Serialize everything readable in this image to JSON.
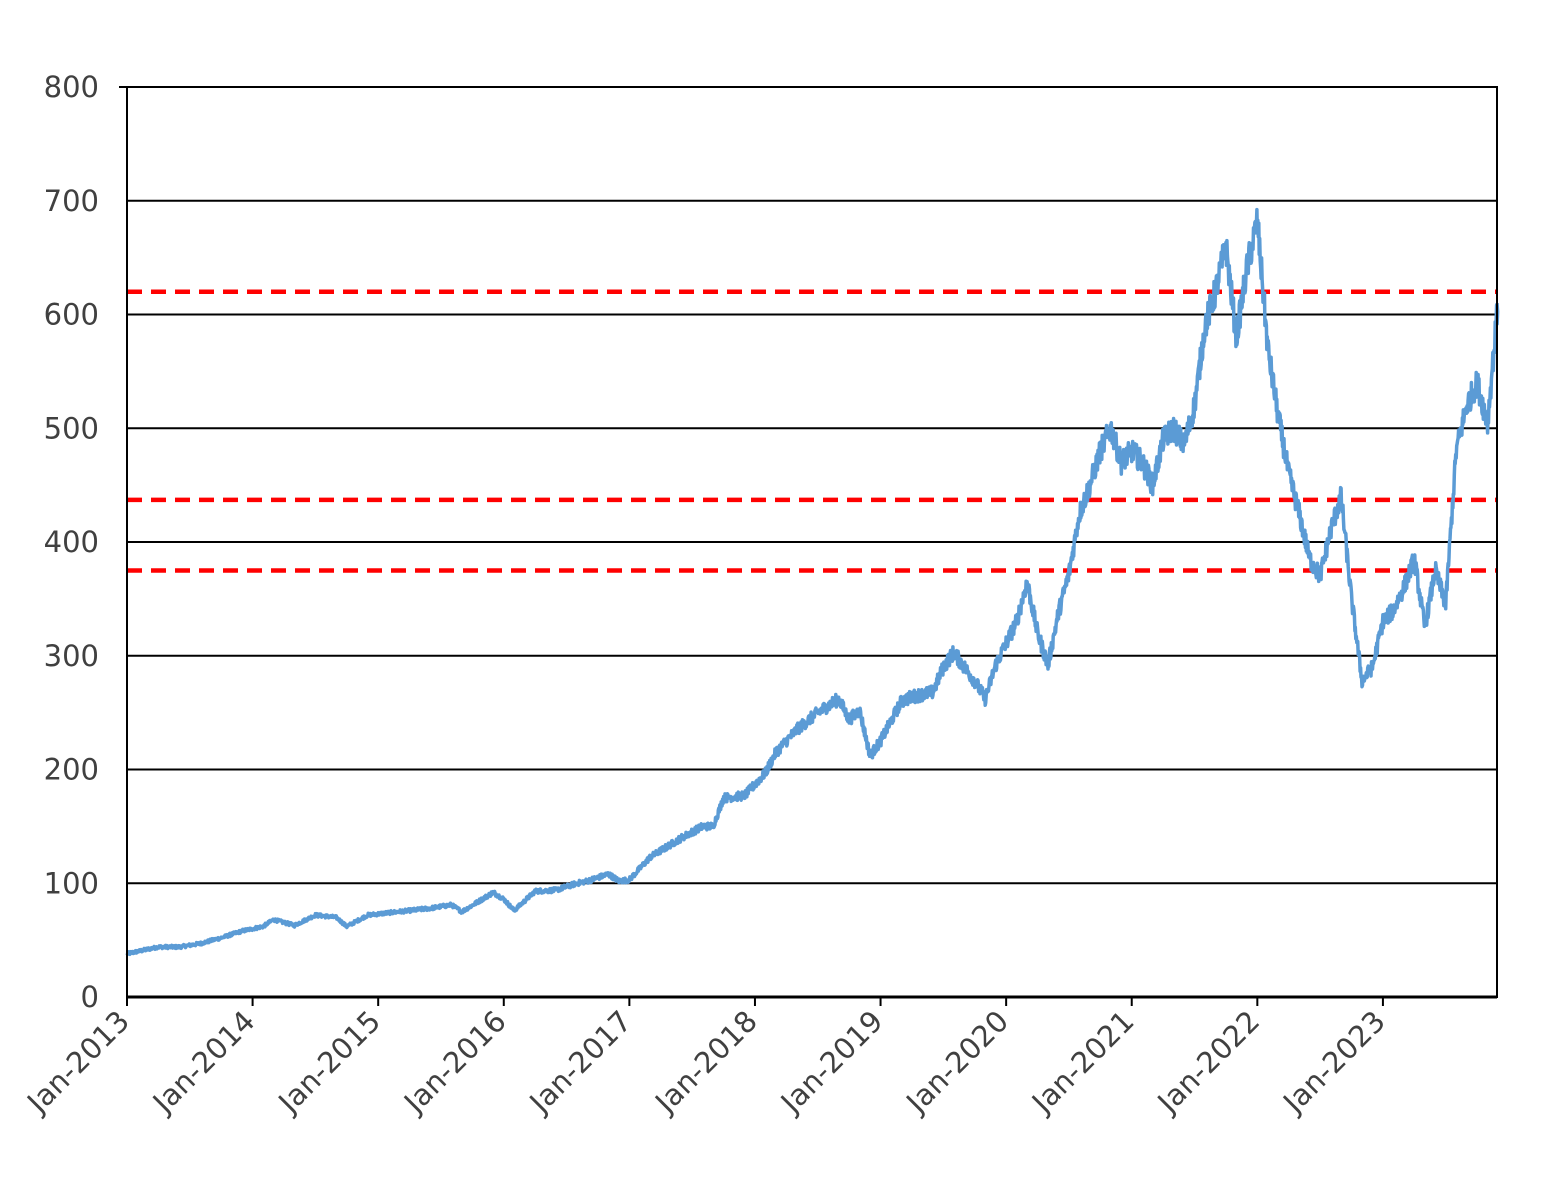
{
  "chart_data": {
    "type": "line",
    "title": "",
    "xlabel": "",
    "ylabel": "",
    "x_range": [
      "2013-01",
      "2023-11"
    ],
    "ylim": [
      0,
      800
    ],
    "y_ticks": [
      0,
      100,
      200,
      300,
      400,
      500,
      600,
      700,
      800
    ],
    "y_tick_labels": [
      "0",
      "100",
      "200",
      "300",
      "400",
      "500",
      "600",
      "700",
      "800"
    ],
    "x_ticks": [
      "2013-01",
      "2014-01",
      "2015-01",
      "2016-01",
      "2017-01",
      "2018-01",
      "2019-01",
      "2020-01",
      "2021-01",
      "2022-01",
      "2023-01"
    ],
    "x_tick_labels": [
      "Jan-2013",
      "Jan-2014",
      "Jan-2015",
      "Jan-2016",
      "Jan-2017",
      "Jan-2018",
      "Jan-2019",
      "Jan-2020",
      "Jan-2021",
      "Jan-2022",
      "Jan-2023"
    ],
    "grid": "horizontal",
    "legend": "none",
    "series": [
      {
        "color": "#5b9bd5",
        "points": [
          [
            "2013-01",
            38
          ],
          [
            "2013-02",
            40
          ],
          [
            "2013-04",
            44
          ],
          [
            "2013-06",
            44
          ],
          [
            "2013-08",
            47
          ],
          [
            "2013-10",
            52
          ],
          [
            "2013-12",
            58
          ],
          [
            "2014-02",
            62
          ],
          [
            "2014-03",
            68
          ],
          [
            "2014-05",
            63
          ],
          [
            "2014-07",
            72
          ],
          [
            "2014-09",
            70
          ],
          [
            "2014-10",
            62
          ],
          [
            "2014-12",
            72
          ],
          [
            "2015-03",
            75
          ],
          [
            "2015-06",
            78
          ],
          [
            "2015-08",
            81
          ],
          [
            "2015-09",
            75
          ],
          [
            "2015-12",
            92
          ],
          [
            "2016-01",
            86
          ],
          [
            "2016-02",
            76
          ],
          [
            "2016-04",
            93
          ],
          [
            "2016-06",
            94
          ],
          [
            "2016-08",
            100
          ],
          [
            "2016-09",
            102
          ],
          [
            "2016-11",
            108
          ],
          [
            "2016-12",
            102
          ],
          [
            "2017-01",
            103
          ],
          [
            "2017-03",
            123
          ],
          [
            "2017-06",
            140
          ],
          [
            "2017-08",
            150
          ],
          [
            "2017-09",
            150
          ],
          [
            "2017-10",
            175
          ],
          [
            "2017-12",
            177
          ],
          [
            "2018-02",
            197
          ],
          [
            "2018-03",
            215
          ],
          [
            "2018-05",
            235
          ],
          [
            "2018-07",
            250
          ],
          [
            "2018-08",
            256
          ],
          [
            "2018-09",
            262
          ],
          [
            "2018-10",
            244
          ],
          [
            "2018-11",
            252
          ],
          [
            "2018-12",
            212
          ],
          [
            "2019-01",
            225
          ],
          [
            "2019-03",
            260
          ],
          [
            "2019-04",
            264
          ],
          [
            "2019-06",
            268
          ],
          [
            "2019-07",
            290
          ],
          [
            "2019-08",
            303
          ],
          [
            "2019-09",
            290
          ],
          [
            "2019-10",
            278
          ],
          [
            "2019-11",
            262
          ],
          [
            "2019-12",
            292
          ],
          [
            "2020-02",
            330
          ],
          [
            "2020-03",
            365
          ],
          [
            "2020-04",
            320
          ],
          [
            "2020-05",
            292
          ],
          [
            "2020-06",
            338
          ],
          [
            "2020-07",
            372
          ],
          [
            "2020-08",
            425
          ],
          [
            "2020-09",
            450
          ],
          [
            "2020-10",
            480
          ],
          [
            "2020-11",
            500
          ],
          [
            "2020-12",
            470
          ],
          [
            "2021-01",
            480
          ],
          [
            "2021-02",
            470
          ],
          [
            "2021-03",
            450
          ],
          [
            "2021-04",
            490
          ],
          [
            "2021-05",
            500
          ],
          [
            "2021-06",
            485
          ],
          [
            "2021-07",
            520
          ],
          [
            "2021-08",
            590
          ],
          [
            "2021-09",
            620
          ],
          [
            "2021-10",
            660
          ],
          [
            "2021-11",
            580
          ],
          [
            "2021-12",
            640
          ],
          [
            "2022-01",
            682
          ],
          [
            "2022-02",
            570
          ],
          [
            "2022-03",
            510
          ],
          [
            "2022-04",
            460
          ],
          [
            "2022-05",
            425
          ],
          [
            "2022-06",
            385
          ],
          [
            "2022-07",
            370
          ],
          [
            "2022-08",
            410
          ],
          [
            "2022-09",
            440
          ],
          [
            "2022-10",
            350
          ],
          [
            "2022-11",
            278
          ],
          [
            "2022-12",
            290
          ],
          [
            "2023-01",
            330
          ],
          [
            "2023-02",
            340
          ],
          [
            "2023-03",
            360
          ],
          [
            "2023-04",
            385
          ],
          [
            "2023-05",
            325
          ],
          [
            "2023-06",
            375
          ],
          [
            "2023-07",
            345
          ],
          [
            "2023-08",
            480
          ],
          [
            "2023-09",
            520
          ],
          [
            "2023-10",
            540
          ],
          [
            "2023-11",
            505
          ],
          [
            "2023-12",
            610
          ]
        ]
      }
    ],
    "reference_lines": [
      {
        "y": 620,
        "color": "#ff0000",
        "style": "dashed"
      },
      {
        "y": 437,
        "color": "#ff0000",
        "style": "dashed"
      },
      {
        "y": 375,
        "color": "#ff0000",
        "style": "dashed"
      }
    ]
  }
}
